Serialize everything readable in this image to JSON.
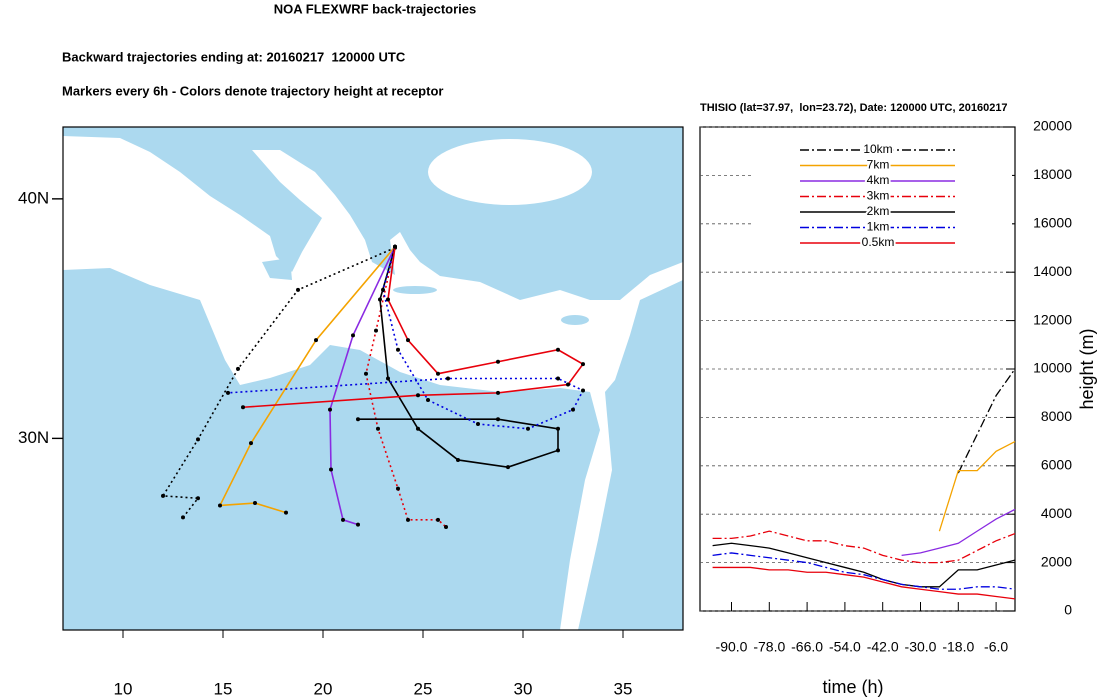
{
  "title": "NOA FLEXWRF back-trajectories",
  "subtitle": "Backward trajectories ending at: 20160217  120000 UTC",
  "caption": "Markers every 6h - Colors denote trajectory height at receptor",
  "chart_data": [
    {
      "type": "map",
      "xlim": [
        7,
        38
      ],
      "ylim": [
        22,
        43
      ],
      "xticks": [
        10,
        15,
        20,
        25,
        30,
        35
      ],
      "yticks": [
        {
          "value": 30,
          "label": "30N"
        },
        {
          "value": 40,
          "label": "40N"
        }
      ],
      "series": [
        {
          "color": "#000000",
          "dash": "dotted",
          "x": [
            23.6,
            18.75,
            15.75,
            13.75,
            12,
            13.75,
            13
          ],
          "y": [
            37.96,
            36.2,
            32.9,
            29.96,
            27.6,
            27.5,
            26.7
          ]
        },
        {
          "color": "#f4a300",
          "dash": "solid",
          "x": [
            23.6,
            19.65,
            16.4,
            14.85,
            16.6,
            18.15
          ],
          "y": [
            38,
            34.1,
            29.8,
            27.2,
            27.3,
            26.9
          ]
        },
        {
          "color": "#8a2be2",
          "dash": "solid",
          "x": [
            23.6,
            21.5,
            20.35,
            20.4,
            21,
            21.75
          ],
          "y": [
            38,
            34.3,
            31.2,
            28.7,
            26.6,
            26.4
          ]
        },
        {
          "color": "#e8000b",
          "dash": "dotted",
          "x": [
            23.6,
            22.65,
            22.15,
            22.75,
            23.75,
            24.25,
            25.75,
            26.15
          ],
          "y": [
            38,
            34.5,
            32.7,
            30.4,
            27.9,
            26.6,
            26.6,
            26.3
          ]
        },
        {
          "color": "#000000",
          "dash": "solid",
          "x": [
            23.6,
            22.85,
            23.25,
            24.75,
            26.75,
            29.25,
            31.75,
            31.75,
            28.75,
            21.75
          ],
          "y": [
            38,
            35.8,
            32.5,
            30.4,
            29.1,
            28.8,
            29.5,
            30.4,
            30.8,
            30.8
          ]
        },
        {
          "color": "#0000e0",
          "dash": "dotted",
          "x": [
            23.6,
            23,
            23.75,
            25.25,
            27.75,
            30.25,
            32.5,
            33,
            31.75,
            26.25,
            15.25
          ],
          "y": [
            38,
            36.2,
            33.7,
            31.6,
            30.6,
            30.4,
            31.2,
            32,
            32.5,
            32.5,
            31.9
          ]
        },
        {
          "color": "#e8000b",
          "dash": "solid",
          "x": [
            23.6,
            23.25,
            24.25,
            25.75,
            28.75,
            31.75,
            33,
            32.25,
            28.75,
            24.75,
            16
          ],
          "y": [
            38,
            35.8,
            34.1,
            32.7,
            33.2,
            33.7,
            33.1,
            32.25,
            31.9,
            31.8,
            31.3
          ]
        }
      ]
    },
    {
      "type": "line",
      "title": "THISIO (lat=37.97,  lon=23.72), Date: 120000 UTC, 20160217",
      "xlabel": "time (h)",
      "ylabel": "height (m)",
      "xlim": [
        -100,
        0
      ],
      "ylim": [
        0,
        20000
      ],
      "xticks": [
        {
          "value": -90,
          "label": "-90.0"
        },
        {
          "value": -78,
          "label": "-78.0"
        },
        {
          "value": -66,
          "label": "-66.0"
        },
        {
          "value": -54,
          "label": "-54.0"
        },
        {
          "value": -42,
          "label": "-42.0"
        },
        {
          "value": -30,
          "label": "-30.0"
        },
        {
          "value": -18,
          "label": "-18.0"
        },
        {
          "value": -6,
          "label": "-6.0"
        }
      ],
      "yticks": [
        0,
        2000,
        4000,
        6000,
        8000,
        10000,
        12000,
        14000,
        16000,
        18000,
        20000
      ],
      "grid": true,
      "legend": "top",
      "x": [
        -96,
        -90,
        -84,
        -78,
        -72,
        -66,
        -60,
        -54,
        -48,
        -42,
        -36,
        -30,
        -24,
        -18,
        -12,
        -6,
        0
      ],
      "series": [
        {
          "name": "10km",
          "color": "#000000",
          "dash": "dashdot",
          "values": [
            null,
            null,
            null,
            null,
            null,
            null,
            null,
            null,
            null,
            null,
            null,
            null,
            null,
            5700,
            7300,
            8900,
            10000
          ]
        },
        {
          "name": "7km",
          "color": "#f4a300",
          "dash": "solid",
          "values": [
            null,
            null,
            null,
            null,
            null,
            null,
            null,
            null,
            null,
            null,
            null,
            null,
            3300,
            5800,
            5800,
            6600,
            7000
          ]
        },
        {
          "name": "4km",
          "color": "#8a2be2",
          "dash": "solid",
          "values": [
            null,
            null,
            null,
            null,
            null,
            null,
            null,
            null,
            null,
            null,
            2300,
            2400,
            2600,
            2800,
            3300,
            3800,
            4200
          ]
        },
        {
          "name": "3km",
          "color": "#e8000b",
          "dash": "dashdot",
          "values": [
            3000,
            3000,
            3100,
            3300,
            3100,
            2900,
            2900,
            2700,
            2600,
            2300,
            2100,
            2000,
            2000,
            2100,
            2500,
            2900,
            3200
          ]
        },
        {
          "name": "2km",
          "color": "#000000",
          "dash": "solid",
          "values": [
            2700,
            2800,
            2700,
            2600,
            2400,
            2200,
            2000,
            1800,
            1600,
            1300,
            1100,
            1000,
            1000,
            1700,
            1700,
            1900,
            2100
          ]
        },
        {
          "name": "1km",
          "color": "#0000e0",
          "dash": "dashdot",
          "values": [
            2300,
            2400,
            2300,
            2200,
            2100,
            2000,
            1800,
            1600,
            1500,
            1300,
            1100,
            1000,
            900,
            900,
            1000,
            1000,
            900
          ]
        },
        {
          "name": "0.5km",
          "color": "#e8000b",
          "dash": "solid",
          "values": [
            1800,
            1800,
            1800,
            1700,
            1700,
            1600,
            1600,
            1500,
            1400,
            1200,
            1000,
            900,
            800,
            700,
            700,
            600,
            500
          ]
        }
      ]
    }
  ]
}
